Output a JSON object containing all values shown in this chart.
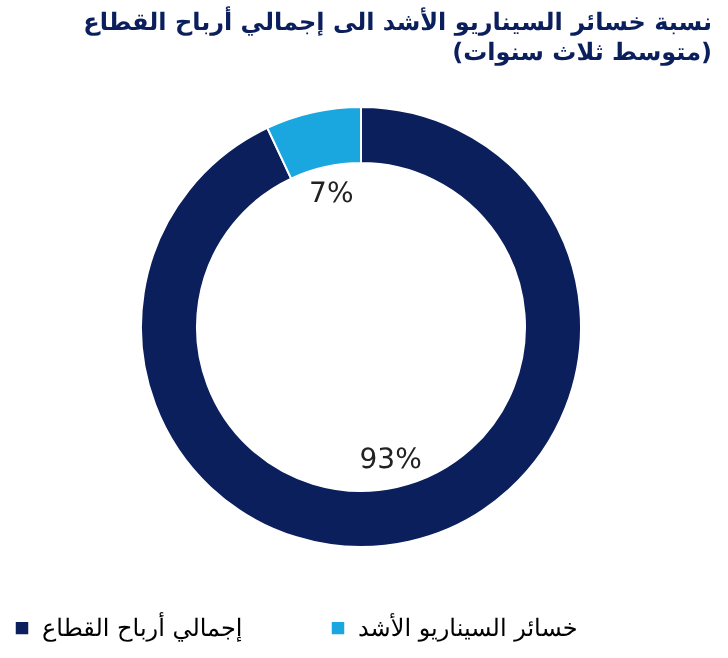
{
  "chart_data": {
    "type": "donut",
    "title": "نسبة خسائر السيناريو الأشد الى إجمالي أرباح القطاع",
    "subtitle": "(متوسط ثلاث سنوات)",
    "categories": [
      "إجمالي أرباح القطاع",
      "خسائر السيناريو الأشد"
    ],
    "values": [
      93,
      7
    ],
    "colors": [
      "#0b1f5c",
      "#1aa7e0"
    ],
    "value_labels": [
      "93%",
      "7%"
    ],
    "legend": "bottom"
  }
}
